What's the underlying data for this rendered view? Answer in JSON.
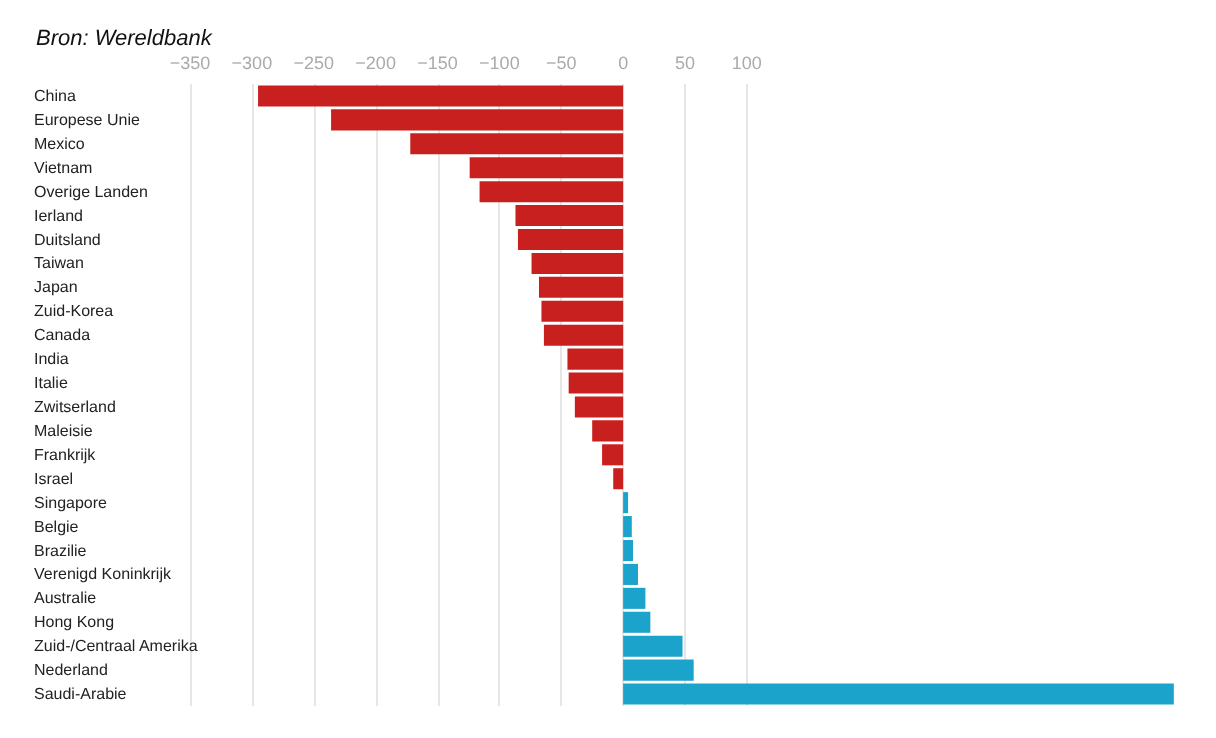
{
  "chart_data": {
    "type": "bar",
    "orientation": "horizontal",
    "annotations": [
      "Bron: Wereldbank"
    ],
    "categories": [
      "China",
      "Europese Unie",
      "Mexico",
      "Vietnam",
      "Overige Landen",
      "Ierland",
      "Duitsland",
      "Taiwan",
      "Japan",
      "Zuid-Korea",
      "Canada",
      "India",
      "Italie",
      "Zwitserland",
      "Maleisie",
      "Frankrijk",
      "Israel",
      "Singapore",
      "Belgie",
      "Brazilie",
      "Verenigd Koninkrijk",
      "Australie",
      "Hong Kong",
      "Zuid-/Centraal Amerika",
      "Nederland",
      "Saudi-Arabie"
    ],
    "values": [
      -295,
      -236,
      -172,
      -124,
      -116,
      -87,
      -85,
      -74,
      -68,
      -66,
      -64,
      -45,
      -44,
      -39,
      -25,
      -17,
      -8,
      4,
      7,
      8,
      12,
      18,
      22,
      48,
      57,
      445
    ],
    "colors": [
      "#c8201f",
      "#c8201f",
      "#c8201f",
      "#c8201f",
      "#c8201f",
      "#c8201f",
      "#c8201f",
      "#c8201f",
      "#c8201f",
      "#c8201f",
      "#c8201f",
      "#c8201f",
      "#c8201f",
      "#c8201f",
      "#c8201f",
      "#c8201f",
      "#c8201f",
      "#1ca3cc",
      "#1ca3cc",
      "#1ca3cc",
      "#1ca3cc",
      "#1ca3cc",
      "#1ca3cc",
      "#1ca3cc",
      "#1ca3cc",
      "#1ca3cc"
    ],
    "xlim": [
      -350,
      450
    ],
    "xticks": [
      -350,
      -300,
      -250,
      -200,
      -150,
      -100,
      -50,
      0,
      50,
      100
    ],
    "grid": "x"
  }
}
